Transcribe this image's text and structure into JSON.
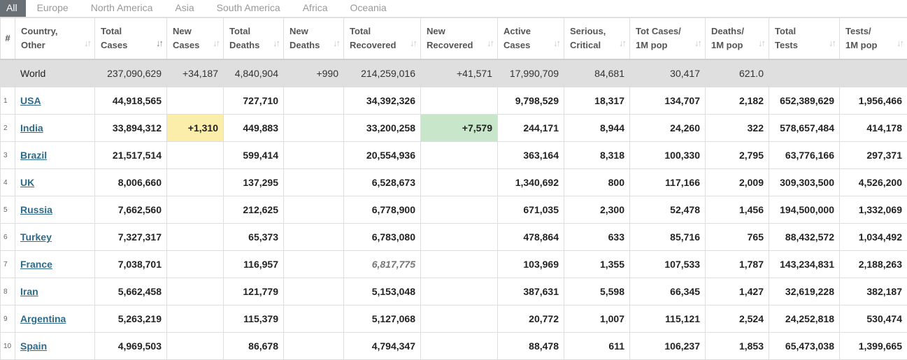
{
  "tabs": [
    "All",
    "Europe",
    "North America",
    "Asia",
    "South America",
    "Africa",
    "Oceania"
  ],
  "headers": [
    {
      "l1": "#",
      "l2": ""
    },
    {
      "l1": "Country,",
      "l2": "Other"
    },
    {
      "l1": "Total",
      "l2": "Cases"
    },
    {
      "l1": "New",
      "l2": "Cases"
    },
    {
      "l1": "Total",
      "l2": "Deaths"
    },
    {
      "l1": "New",
      "l2": "Deaths"
    },
    {
      "l1": "Total",
      "l2": "Recovered"
    },
    {
      "l1": "New",
      "l2": "Recovered"
    },
    {
      "l1": "Active",
      "l2": "Cases"
    },
    {
      "l1": "Serious,",
      "l2": "Critical"
    },
    {
      "l1": "Tot Cases/",
      "l2": "1M pop"
    },
    {
      "l1": "Deaths/",
      "l2": "1M pop"
    },
    {
      "l1": "Total",
      "l2": "Tests"
    },
    {
      "l1": "Tests/",
      "l2": "1M pop"
    }
  ],
  "world": {
    "idx": "",
    "country": "World",
    "total_cases": "237,090,629",
    "new_cases": "+34,187",
    "total_deaths": "4,840,904",
    "new_deaths": "+990",
    "total_recovered": "214,259,016",
    "new_recovered": "+41,571",
    "active": "17,990,709",
    "serious": "84,681",
    "cases_per_1m": "30,417",
    "deaths_per_1m": "621.0",
    "total_tests": "",
    "tests_per_1m": ""
  },
  "rows": [
    {
      "idx": "1",
      "country": "USA",
      "total_cases": "44,918,565",
      "new_cases": "",
      "total_deaths": "727,710",
      "new_deaths": "",
      "total_recovered": "34,392,326",
      "new_recovered": "",
      "active": "9,798,529",
      "serious": "18,317",
      "cases_per_1m": "134,707",
      "deaths_per_1m": "2,182",
      "total_tests": "652,389,629",
      "tests_per_1m": "1,956,466"
    },
    {
      "idx": "2",
      "country": "India",
      "total_cases": "33,894,312",
      "new_cases": "+1,310",
      "total_deaths": "449,883",
      "new_deaths": "",
      "total_recovered": "33,200,258",
      "new_recovered": "+7,579",
      "active": "244,171",
      "serious": "8,944",
      "cases_per_1m": "24,260",
      "deaths_per_1m": "322",
      "total_tests": "578,657,484",
      "tests_per_1m": "414,178"
    },
    {
      "idx": "3",
      "country": "Brazil",
      "total_cases": "21,517,514",
      "new_cases": "",
      "total_deaths": "599,414",
      "new_deaths": "",
      "total_recovered": "20,554,936",
      "new_recovered": "",
      "active": "363,164",
      "serious": "8,318",
      "cases_per_1m": "100,330",
      "deaths_per_1m": "2,795",
      "total_tests": "63,776,166",
      "tests_per_1m": "297,371"
    },
    {
      "idx": "4",
      "country": "UK",
      "total_cases": "8,006,660",
      "new_cases": "",
      "total_deaths": "137,295",
      "new_deaths": "",
      "total_recovered": "6,528,673",
      "new_recovered": "",
      "active": "1,340,692",
      "serious": "800",
      "cases_per_1m": "117,166",
      "deaths_per_1m": "2,009",
      "total_tests": "309,303,500",
      "tests_per_1m": "4,526,200"
    },
    {
      "idx": "5",
      "country": "Russia",
      "total_cases": "7,662,560",
      "new_cases": "",
      "total_deaths": "212,625",
      "new_deaths": "",
      "total_recovered": "6,778,900",
      "new_recovered": "",
      "active": "671,035",
      "serious": "2,300",
      "cases_per_1m": "52,478",
      "deaths_per_1m": "1,456",
      "total_tests": "194,500,000",
      "tests_per_1m": "1,332,069"
    },
    {
      "idx": "6",
      "country": "Turkey",
      "total_cases": "7,327,317",
      "new_cases": "",
      "total_deaths": "65,373",
      "new_deaths": "",
      "total_recovered": "6,783,080",
      "new_recovered": "",
      "active": "478,864",
      "serious": "633",
      "cases_per_1m": "85,716",
      "deaths_per_1m": "765",
      "total_tests": "88,432,572",
      "tests_per_1m": "1,034,492"
    },
    {
      "idx": "7",
      "country": "France",
      "total_cases": "7,038,701",
      "new_cases": "",
      "total_deaths": "116,957",
      "new_deaths": "",
      "total_recovered": "6,817,775",
      "new_recovered": "",
      "active": "103,969",
      "serious": "1,355",
      "cases_per_1m": "107,533",
      "deaths_per_1m": "1,787",
      "total_tests": "143,234,831",
      "tests_per_1m": "2,188,263"
    },
    {
      "idx": "8",
      "country": "Iran",
      "total_cases": "5,662,458",
      "new_cases": "",
      "total_deaths": "121,779",
      "new_deaths": "",
      "total_recovered": "5,153,048",
      "new_recovered": "",
      "active": "387,631",
      "serious": "5,598",
      "cases_per_1m": "66,345",
      "deaths_per_1m": "1,427",
      "total_tests": "32,619,228",
      "tests_per_1m": "382,187"
    },
    {
      "idx": "9",
      "country": "Argentina",
      "total_cases": "5,263,219",
      "new_cases": "",
      "total_deaths": "115,379",
      "new_deaths": "",
      "total_recovered": "5,127,068",
      "new_recovered": "",
      "active": "20,772",
      "serious": "1,007",
      "cases_per_1m": "115,121",
      "deaths_per_1m": "2,524",
      "total_tests": "24,252,818",
      "tests_per_1m": "530,474"
    },
    {
      "idx": "10",
      "country": "Spain",
      "total_cases": "4,969,503",
      "new_cases": "",
      "total_deaths": "86,678",
      "new_deaths": "",
      "total_recovered": "4,794,347",
      "new_recovered": "",
      "active": "88,478",
      "serious": "611",
      "cases_per_1m": "106,237",
      "deaths_per_1m": "1,853",
      "total_tests": "65,473,038",
      "tests_per_1m": "1,399,665"
    }
  ]
}
